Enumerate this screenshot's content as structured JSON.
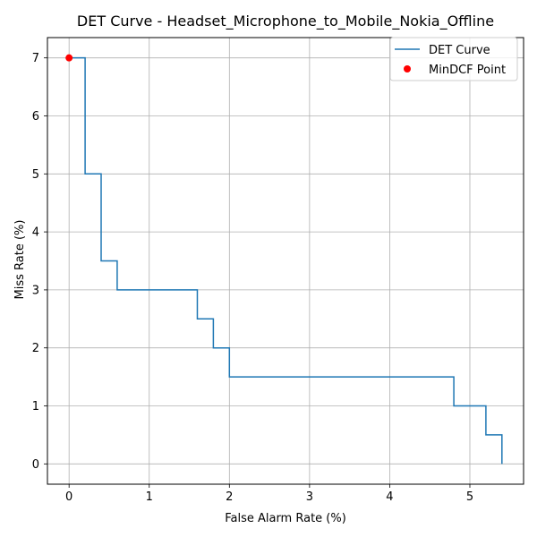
{
  "chart_data": {
    "type": "line",
    "title": "DET Curve - Headset_Microphone_to_Mobile_Nokia_Offline",
    "xlabel": "False Alarm Rate (%)",
    "ylabel": "Miss Rate (%)",
    "xlim": [
      -0.27,
      5.67
    ],
    "ylim": [
      -0.35,
      7.35
    ],
    "x_ticks": [
      0,
      1,
      2,
      3,
      4,
      5
    ],
    "y_ticks": [
      0,
      1,
      2,
      3,
      4,
      5,
      6,
      7
    ],
    "grid": true,
    "legend_position": "top-right",
    "colors": {
      "curve": "#1f77b4",
      "point": "#ff0000",
      "grid": "#b0b0b0"
    },
    "series": [
      {
        "name": "DET Curve",
        "style": "step",
        "points": [
          [
            0,
            7.0
          ],
          [
            0.2,
            7.0
          ],
          [
            0.2,
            5.0
          ],
          [
            0.4,
            5.0
          ],
          [
            0.4,
            3.5
          ],
          [
            0.6,
            3.5
          ],
          [
            0.6,
            3.0
          ],
          [
            1.6,
            3.0
          ],
          [
            1.6,
            2.5
          ],
          [
            1.8,
            2.5
          ],
          [
            1.8,
            2.0
          ],
          [
            2.0,
            2.0
          ],
          [
            2.0,
            1.5
          ],
          [
            4.8,
            1.5
          ],
          [
            4.8,
            1.0
          ],
          [
            5.2,
            1.0
          ],
          [
            5.2,
            0.5
          ],
          [
            5.4,
            0.5
          ],
          [
            5.4,
            0.0
          ]
        ]
      },
      {
        "name": "MinDCF Point",
        "style": "scatter",
        "points": [
          [
            0,
            7.0
          ]
        ]
      }
    ]
  }
}
